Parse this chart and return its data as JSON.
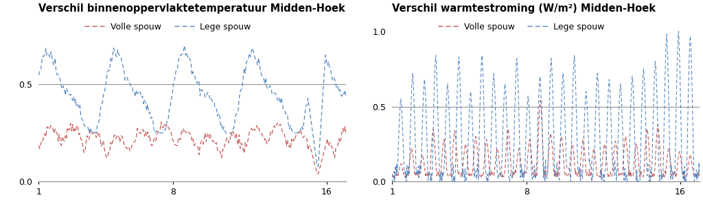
{
  "title_left": "Verschil binnenoppervlaktetemperatuur Midden-Hoek",
  "title_right": "Verschil warmtestroming (W/m²) Midden-Hoek",
  "legend_volle": "Volle spouw",
  "legend_lege": "Lege spouw",
  "xlim": [
    1,
    17
  ],
  "xticks": [
    1,
    8,
    16
  ],
  "ylim_left": [
    0,
    0.85
  ],
  "yticks_left": [
    0,
    0.5
  ],
  "ylim_right": [
    0,
    1.1
  ],
  "yticks_right": [
    0,
    0.5,
    1
  ],
  "hline_y": 0.5,
  "color_volle": "#c0504d",
  "color_lege": "#4f81bd",
  "background": "#ffffff",
  "title_fontsize": 10.5,
  "legend_fontsize": 9,
  "tick_fontsize": 9
}
